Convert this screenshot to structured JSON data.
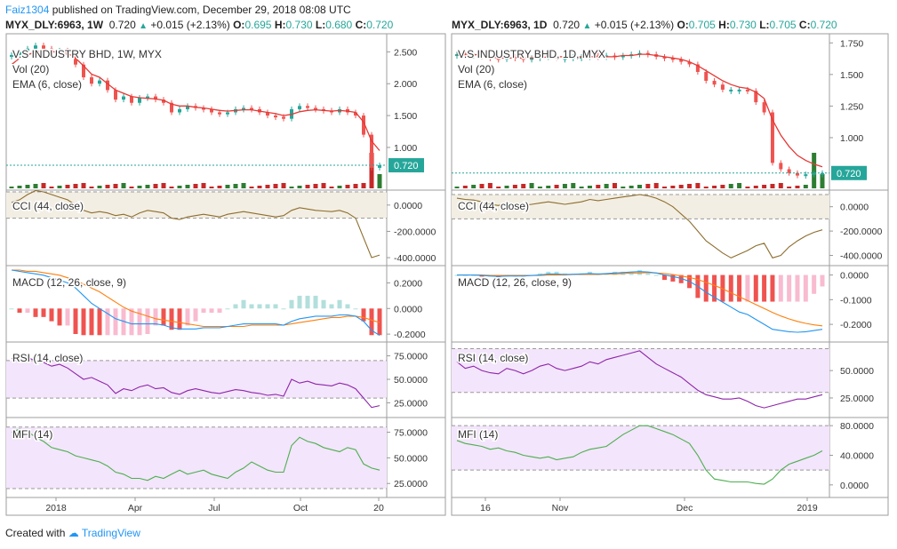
{
  "header": {
    "user": "Faiz1304",
    "text": " published on TradingView.com, December 29, 2018 08:08 UTC"
  },
  "left": {
    "symbol": "MYX_DLY:6963, 1W",
    "price": "0.720",
    "change": "+0.015 (+2.13%)",
    "o_label": "O:",
    "o": "0.695",
    "h_label": "H:",
    "h": "0.730",
    "l_label": "L:",
    "l": "0.680",
    "c_label": "C:",
    "c": "0.720",
    "name": "V.S INDUSTRY BHD, 1W, MYX",
    "vol_label": "Vol (20)",
    "ema_label": "EMA (6, close)",
    "cci_label": "CCI (44, close)",
    "macd_label": "MACD (12, 26, close, 9)",
    "rsi_label": "RSI (14, close)",
    "mfi_label": "MFI (14)",
    "price_badge": "0.720",
    "x_ticks": [
      "2018",
      "Apr",
      "Jul",
      "Oct",
      "20"
    ],
    "price_ticks": [
      "2.500",
      "2.000",
      "1.500",
      "1.000"
    ],
    "cci_ticks": [
      "0.0000",
      "-200.0000",
      "-400.0000"
    ],
    "macd_ticks": [
      "0.2000",
      "0.0000",
      "-0.2000"
    ],
    "rsi_ticks": [
      "75.0000",
      "50.0000",
      "25.0000"
    ],
    "mfi_ticks": [
      "75.0000",
      "50.0000",
      "25.0000"
    ]
  },
  "right": {
    "symbol": "MYX_DLY:6963, 1D",
    "price": "0.720",
    "change": "+0.015 (+2.13%)",
    "o_label": "O:",
    "o": "0.705",
    "h_label": "H:",
    "h": "0.730",
    "l_label": "L:",
    "l": "0.705",
    "c_label": "C:",
    "c": "0.720",
    "name": "V.S INDUSTRY BHD, 1D, MYX",
    "vol_label": "Vol (20)",
    "ema_label": "EMA (6, close)",
    "cci_label": "CCI (44, close)",
    "macd_label": "MACD (12, 26, close, 9)",
    "rsi_label": "RSI (14, close)",
    "mfi_label": "MFI (14)",
    "price_badge": "0.720",
    "x_ticks": [
      "16",
      "Nov",
      "Dec",
      "2019"
    ],
    "price_ticks": [
      "1.750",
      "1.500",
      "1.250",
      "1.000"
    ],
    "cci_ticks": [
      "0.0000",
      "-200.0000",
      "-400.0000"
    ],
    "macd_ticks": [
      "0.0000",
      "-0.1000",
      "-0.2000"
    ],
    "rsi_ticks": [
      "50.0000",
      "25.0000"
    ],
    "mfi_ticks": [
      "80.0000",
      "40.0000",
      "0.0000"
    ]
  },
  "footer": {
    "prefix": "Created with ",
    "brand": "TradingView"
  },
  "colors": {
    "up": "#26a69a",
    "down": "#ef5350",
    "ema": "#e53935",
    "cci": "#8d6e2e",
    "macd": "#2196f3",
    "signal": "#ff7f0e",
    "rsi": "#8e24aa",
    "mfi": "#4caf50",
    "vol_up": "#2e7d32",
    "vol_down": "#c62828",
    "badge": "#26a69a"
  },
  "chart_data": [
    {
      "type": "line",
      "title": "V.S INDUSTRY BHD, 1W, MYX",
      "x_tick_labels": [
        "2018",
        "Apr",
        "Jul",
        "Oct",
        "20"
      ],
      "price_close": [
        2.45,
        2.5,
        2.55,
        2.6,
        2.55,
        2.5,
        2.52,
        2.45,
        2.3,
        2.1,
        2.0,
        2.05,
        1.9,
        1.75,
        1.8,
        1.7,
        1.78,
        1.8,
        1.75,
        1.7,
        1.55,
        1.6,
        1.65,
        1.62,
        1.6,
        1.55,
        1.52,
        1.55,
        1.6,
        1.62,
        1.6,
        1.55,
        1.5,
        1.48,
        1.45,
        1.6,
        1.65,
        1.62,
        1.6,
        1.58,
        1.55,
        1.6,
        1.55,
        1.5,
        1.2,
        0.68,
        0.72
      ],
      "price_ylim": [
        0.4,
        2.7
      ],
      "ema_6": [
        2.3,
        2.4,
        2.45,
        2.5,
        2.52,
        2.5,
        2.5,
        2.48,
        2.4,
        2.28,
        2.15,
        2.1,
        2.0,
        1.9,
        1.85,
        1.8,
        1.78,
        1.77,
        1.76,
        1.74,
        1.68,
        1.65,
        1.65,
        1.63,
        1.62,
        1.6,
        1.58,
        1.57,
        1.58,
        1.59,
        1.59,
        1.57,
        1.55,
        1.53,
        1.5,
        1.52,
        1.56,
        1.58,
        1.59,
        1.58,
        1.57,
        1.58,
        1.57,
        1.55,
        1.4,
        1.1,
        0.95
      ],
      "cci": [
        20,
        40,
        80,
        110,
        100,
        80,
        60,
        40,
        0,
        -40,
        -60,
        -50,
        -60,
        -80,
        -70,
        -90,
        -60,
        -40,
        -50,
        -60,
        -100,
        -110,
        -90,
        -80,
        -70,
        -80,
        -90,
        -70,
        -60,
        -50,
        -60,
        -70,
        -80,
        -90,
        -80,
        -40,
        -20,
        -30,
        -40,
        -45,
        -50,
        -40,
        -60,
        -100,
        -250,
        -400,
        -380
      ],
      "cci_ylim": [
        -420,
        80
      ],
      "macd": [
        0.3,
        0.29,
        0.28,
        0.27,
        0.26,
        0.24,
        0.22,
        0.2,
        0.16,
        0.1,
        0.04,
        0.0,
        -0.04,
        -0.08,
        -0.1,
        -0.12,
        -0.12,
        -0.12,
        -0.12,
        -0.13,
        -0.15,
        -0.16,
        -0.16,
        -0.16,
        -0.15,
        -0.15,
        -0.15,
        -0.14,
        -0.13,
        -0.12,
        -0.12,
        -0.12,
        -0.12,
        -0.12,
        -0.13,
        -0.1,
        -0.08,
        -0.07,
        -0.06,
        -0.06,
        -0.06,
        -0.05,
        -0.05,
        -0.06,
        -0.1,
        -0.17,
        -0.21
      ],
      "signal": [
        0.3,
        0.3,
        0.29,
        0.29,
        0.28,
        0.27,
        0.26,
        0.24,
        0.22,
        0.19,
        0.16,
        0.13,
        0.09,
        0.05,
        0.01,
        -0.02,
        -0.04,
        -0.06,
        -0.08,
        -0.09,
        -0.1,
        -0.11,
        -0.12,
        -0.13,
        -0.14,
        -0.14,
        -0.14,
        -0.14,
        -0.14,
        -0.14,
        -0.13,
        -0.13,
        -0.13,
        -0.13,
        -0.13,
        -0.12,
        -0.11,
        -0.1,
        -0.09,
        -0.08,
        -0.07,
        -0.07,
        -0.06,
        -0.06,
        -0.07,
        -0.09,
        -0.11
      ],
      "macd_ylim": [
        -0.22,
        0.3
      ],
      "rsi": [
        72,
        75,
        73,
        70,
        68,
        64,
        66,
        62,
        56,
        50,
        52,
        48,
        44,
        35,
        40,
        38,
        42,
        44,
        40,
        41,
        36,
        34,
        38,
        40,
        38,
        36,
        35,
        37,
        39,
        38,
        36,
        35,
        33,
        34,
        32,
        50,
        46,
        48,
        45,
        44,
        43,
        46,
        44,
        40,
        30,
        20,
        22
      ],
      "rsi_ylim": [
        15,
        85
      ],
      "mfi": [
        75,
        78,
        76,
        70,
        66,
        60,
        58,
        56,
        52,
        50,
        48,
        46,
        42,
        36,
        34,
        30,
        30,
        28,
        32,
        30,
        34,
        38,
        34,
        36,
        38,
        34,
        32,
        30,
        36,
        40,
        46,
        42,
        38,
        36,
        36,
        62,
        70,
        66,
        64,
        60,
        58,
        56,
        60,
        58,
        44,
        40,
        38
      ],
      "mfi_ylim": [
        20,
        85
      ]
    },
    {
      "type": "line",
      "title": "V.S INDUSTRY BHD, 1D, MYX",
      "x_tick_labels": [
        "16",
        "Nov",
        "Dec",
        "2019"
      ],
      "price_close": [
        1.66,
        1.65,
        1.66,
        1.64,
        1.63,
        1.62,
        1.64,
        1.63,
        1.62,
        1.63,
        1.64,
        1.65,
        1.63,
        1.63,
        1.64,
        1.64,
        1.65,
        1.64,
        1.65,
        1.64,
        1.65,
        1.66,
        1.67,
        1.66,
        1.64,
        1.63,
        1.62,
        1.6,
        1.58,
        1.52,
        1.45,
        1.42,
        1.38,
        1.38,
        1.38,
        1.37,
        1.28,
        1.2,
        0.8,
        0.75,
        0.72,
        0.7,
        0.71,
        0.72,
        0.72
      ],
      "price_ylim": [
        0.62,
        1.78
      ],
      "ema_6": [
        1.66,
        1.66,
        1.66,
        1.65,
        1.64,
        1.63,
        1.63,
        1.63,
        1.63,
        1.63,
        1.63,
        1.64,
        1.64,
        1.64,
        1.64,
        1.64,
        1.64,
        1.64,
        1.64,
        1.64,
        1.65,
        1.65,
        1.66,
        1.66,
        1.65,
        1.64,
        1.63,
        1.62,
        1.6,
        1.57,
        1.53,
        1.49,
        1.45,
        1.42,
        1.4,
        1.39,
        1.36,
        1.31,
        1.14,
        1.02,
        0.93,
        0.86,
        0.82,
        0.79,
        0.77
      ],
      "cci": [
        70,
        60,
        55,
        40,
        20,
        10,
        30,
        20,
        10,
        20,
        30,
        40,
        30,
        20,
        30,
        40,
        60,
        50,
        60,
        70,
        80,
        90,
        100,
        90,
        70,
        40,
        0,
        -60,
        -120,
        -200,
        -280,
        -330,
        -380,
        -420,
        -390,
        -360,
        -320,
        -300,
        -420,
        -400,
        -330,
        -280,
        -240,
        -210,
        -190
      ],
      "cci_ylim": [
        -440,
        100
      ],
      "macd": [
        0.0,
        0.0,
        0.0,
        -0.002,
        -0.004,
        -0.006,
        -0.004,
        -0.004,
        -0.004,
        -0.002,
        0.0,
        0.004,
        0.004,
        0.002,
        0.003,
        0.004,
        0.006,
        0.004,
        0.006,
        0.008,
        0.01,
        0.012,
        0.014,
        0.012,
        0.008,
        0.0,
        -0.006,
        -0.014,
        -0.026,
        -0.046,
        -0.07,
        -0.09,
        -0.11,
        -0.13,
        -0.15,
        -0.16,
        -0.18,
        -0.2,
        -0.22,
        -0.225,
        -0.23,
        -0.232,
        -0.23,
        -0.225,
        -0.22
      ],
      "signal": [
        0.0,
        0.0,
        0.0,
        0.0,
        -0.002,
        -0.002,
        -0.002,
        -0.002,
        -0.002,
        -0.002,
        -0.002,
        0.0,
        0.0,
        0.0,
        0.002,
        0.002,
        0.002,
        0.002,
        0.004,
        0.004,
        0.006,
        0.008,
        0.008,
        0.01,
        0.008,
        0.006,
        0.002,
        -0.004,
        -0.01,
        -0.018,
        -0.03,
        -0.042,
        -0.056,
        -0.072,
        -0.088,
        -0.104,
        -0.12,
        -0.136,
        -0.152,
        -0.166,
        -0.178,
        -0.188,
        -0.196,
        -0.202,
        -0.206
      ],
      "macd_ylim": [
        -0.25,
        0.02
      ],
      "rsi": [
        58,
        52,
        54,
        50,
        48,
        47,
        52,
        50,
        47,
        50,
        54,
        56,
        52,
        50,
        52,
        54,
        58,
        56,
        60,
        62,
        64,
        66,
        68,
        62,
        56,
        52,
        48,
        44,
        38,
        32,
        28,
        26,
        24,
        24,
        25,
        22,
        18,
        16,
        18,
        20,
        22,
        24,
        24,
        26,
        28
      ],
      "rsi_ylim": [
        12,
        72
      ],
      "mfi": [
        60,
        56,
        54,
        52,
        48,
        50,
        46,
        44,
        40,
        38,
        36,
        38,
        34,
        36,
        38,
        44,
        48,
        50,
        52,
        60,
        68,
        74,
        80,
        80,
        76,
        72,
        68,
        62,
        56,
        40,
        20,
        8,
        6,
        4,
        4,
        4,
        2,
        1,
        8,
        20,
        28,
        32,
        36,
        40,
        46
      ],
      "mfi_ylim": [
        -5,
        85
      ]
    }
  ]
}
